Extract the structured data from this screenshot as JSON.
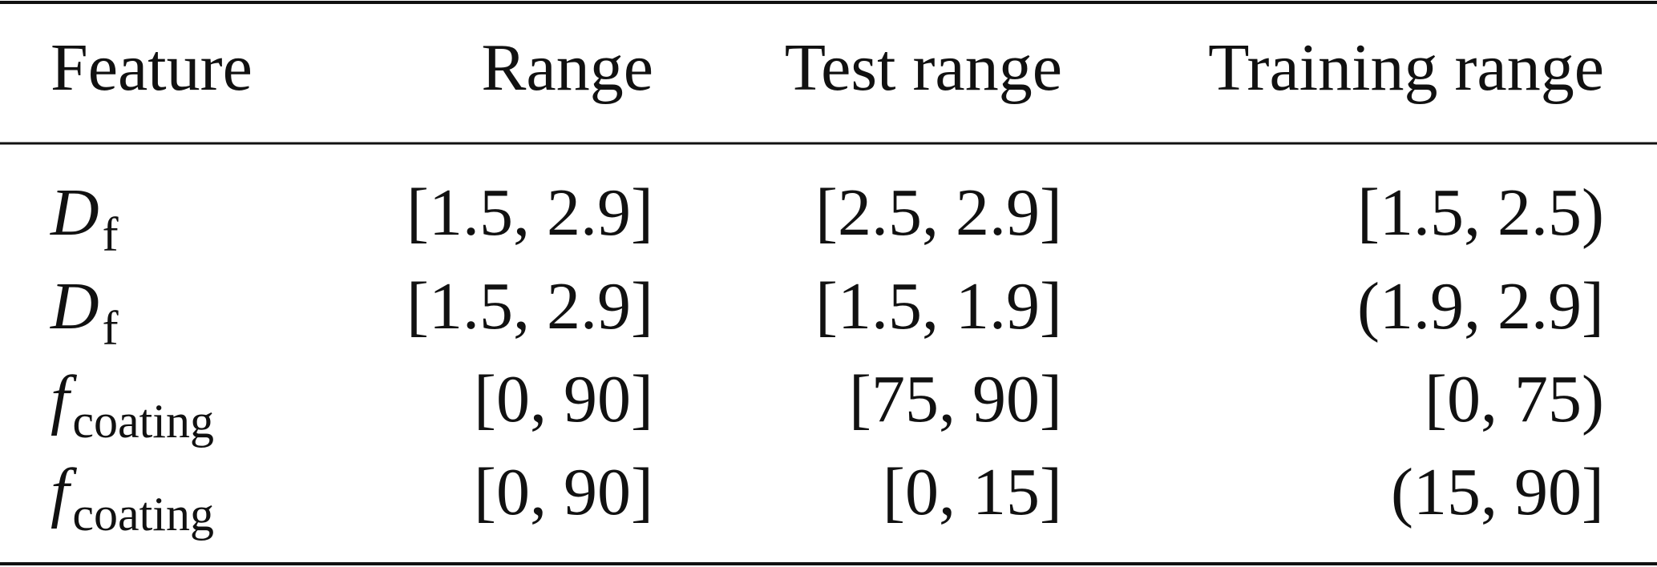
{
  "table": {
    "header": [
      "Feature",
      "Range",
      "Test range",
      "Training range"
    ],
    "rows": [
      [
        {
          "main": "D",
          "sub": "f"
        },
        "[1.5, 2.9]",
        "[2.5, 2.9]",
        "[1.5, 2.5)"
      ],
      [
        {
          "main": "D",
          "sub": "f"
        },
        "[1.5, 2.9]",
        "[1.5, 1.9]",
        "(1.9, 2.9]"
      ],
      [
        {
          "main": "f",
          "sub": "coating"
        },
        "[0, 90]",
        "[75, 90]",
        "[0, 75)"
      ],
      [
        {
          "main": "f",
          "sub": "coating"
        },
        "[0, 90]",
        "[0, 15]",
        "(15, 90]"
      ]
    ]
  }
}
